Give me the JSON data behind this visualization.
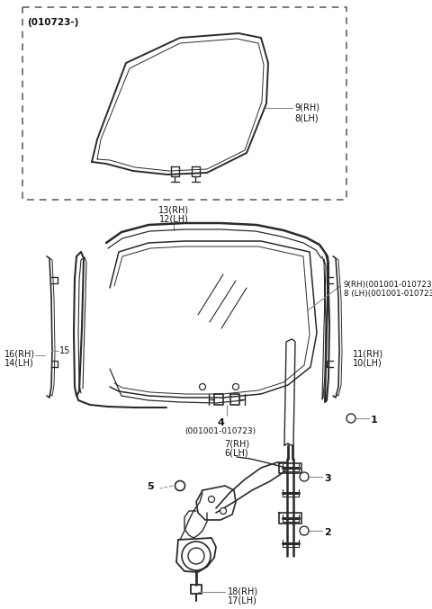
{
  "bg_color": "#ffffff",
  "lc": "#2a2a2a",
  "lc_light": "#666666",
  "labels": {
    "010723": "(010723-)",
    "9RH": "9(RH)",
    "8LH": "8(LH)",
    "13RH": "13(RH)",
    "12LH": "12(LH)",
    "9RH2": "9(RH)(001001-010723)",
    "8LH2": "8 (LH)(001001-010723)",
    "16RH": "16(RH)",
    "14LH": "14(LH)",
    "15": "15",
    "11RH": "11(RH)",
    "10LH": "10(LH)",
    "4": "4",
    "001001": "(001001-010723)",
    "7RH": "7(RH)",
    "6LH": "6(LH)",
    "5": "5",
    "3": "3",
    "1": "1",
    "2": "2",
    "18RH": "18(RH)",
    "17LH": "17(LH)"
  }
}
